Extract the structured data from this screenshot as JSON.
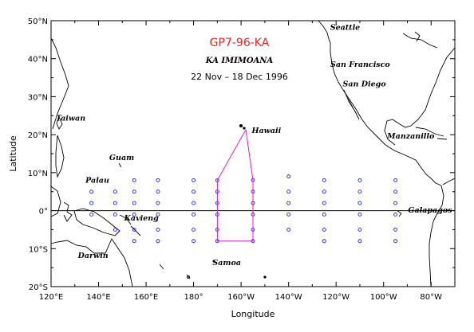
{
  "map": {
    "title": "GP7-96-KA",
    "ship": "KA IMIMOANA",
    "dates": "22 Nov – 18 Dec 1996",
    "title_color": "#e8231f",
    "track_color": "#d41fd0",
    "station_color": "#1f22e0",
    "xlabel": "Longitude",
    "ylabel": "Latitude",
    "lon_range": [
      120,
      290
    ],
    "lat_range": [
      -20,
      50
    ],
    "x_ticks": [
      {
        "lon": 120,
        "label": "120°E"
      },
      {
        "lon": 140,
        "label": "140°E"
      },
      {
        "lon": 160,
        "label": "160°E"
      },
      {
        "lon": 180,
        "label": "180°"
      },
      {
        "lon": 200,
        "label": "160°W"
      },
      {
        "lon": 220,
        "label": "140°W"
      },
      {
        "lon": 240,
        "label": "120°W"
      },
      {
        "lon": 260,
        "label": "100°W"
      },
      {
        "lon": 280,
        "label": "80°W"
      }
    ],
    "y_ticks": [
      {
        "lat": 50,
        "label": "50°N"
      },
      {
        "lat": 40,
        "label": "40°N"
      },
      {
        "lat": 30,
        "label": "30°N"
      },
      {
        "lat": 20,
        "label": "20°N"
      },
      {
        "lat": 10,
        "label": "10°N"
      },
      {
        "lat": 0,
        "label": "0°"
      },
      {
        "lat": -10,
        "label": "10°S"
      },
      {
        "lat": -20,
        "label": "20°S"
      }
    ],
    "places": [
      {
        "name": "Seattle",
        "lon": 237.5,
        "lat": 47.6
      },
      {
        "name": "San Francisco",
        "lon": 237.6,
        "lat": 37.8
      },
      {
        "name": "San Diego",
        "lon": 242.8,
        "lat": 32.7
      },
      {
        "name": "Taiwan",
        "lon": 122,
        "lat": 23.7
      },
      {
        "name": "Hawaii",
        "lon": 204.5,
        "lat": 20.4
      },
      {
        "name": "Manzanillo",
        "lon": 261.5,
        "lat": 19.0
      },
      {
        "name": "Guam",
        "lon": 144.5,
        "lat": 13.3
      },
      {
        "name": "Palau",
        "lon": 134.5,
        "lat": 7.4
      },
      {
        "name": "Kavieng",
        "lon": 150.8,
        "lat": -2.6
      },
      {
        "name": "Galapagos",
        "lon": 270.3,
        "lat": -0.5
      },
      {
        "name": "Darwin",
        "lon": 131.3,
        "lat": -12.5
      },
      {
        "name": "Samoa",
        "lon": 188.0,
        "lat": -14.3
      }
    ],
    "station_columns": [
      {
        "lon": 137,
        "lats": [
          5,
          2,
          -1
        ]
      },
      {
        "lon": 147,
        "lats": [
          5,
          2,
          -1,
          -5
        ]
      },
      {
        "lon": 155,
        "lats": [
          8,
          5,
          2,
          -1,
          -5,
          -8
        ]
      },
      {
        "lon": 165,
        "lats": [
          8,
          5,
          2,
          -1,
          -5,
          -8
        ]
      },
      {
        "lon": 180,
        "lats": [
          8,
          5,
          2,
          -1,
          -5,
          -8
        ]
      },
      {
        "lon": 190,
        "lats": [
          8,
          5,
          2,
          -1,
          -5,
          -8
        ]
      },
      {
        "lon": 205,
        "lats": [
          8,
          5,
          2,
          -1,
          -5,
          -8
        ]
      },
      {
        "lon": 220,
        "lats": [
          9,
          5,
          2,
          -1,
          -5
        ]
      },
      {
        "lon": 235,
        "lats": [
          8,
          5,
          2,
          -1,
          -5,
          -8
        ]
      },
      {
        "lon": 250,
        "lats": [
          8,
          5,
          2,
          -1,
          -5,
          -8
        ]
      },
      {
        "lon": 265,
        "lats": [
          8,
          5,
          2,
          -1,
          -5,
          -8
        ]
      }
    ],
    "cruise_track": [
      [
        202,
        21.3
      ],
      [
        190,
        8
      ],
      [
        190,
        -8
      ],
      [
        205,
        -8
      ],
      [
        205,
        8
      ],
      [
        202,
        21.3
      ]
    ]
  }
}
